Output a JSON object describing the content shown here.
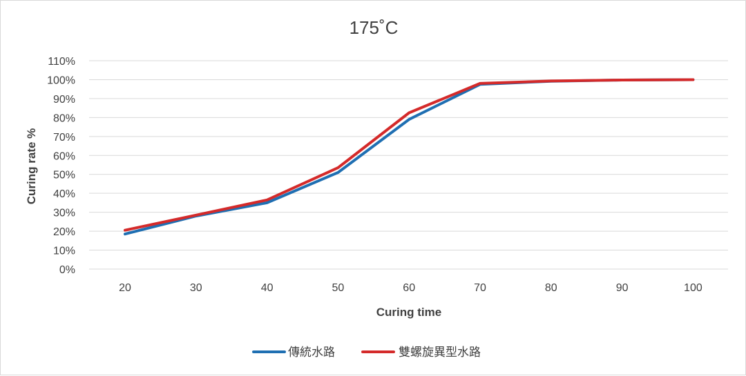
{
  "chart_data": {
    "type": "line",
    "title": "175˚C",
    "xlabel": "Curing time",
    "ylabel": "Curing rate %",
    "x": [
      20,
      30,
      40,
      50,
      60,
      70,
      80,
      90,
      100
    ],
    "x_tick_labels": [
      "20",
      "30",
      "40",
      "50",
      "60",
      "70",
      "80",
      "90",
      "100"
    ],
    "ylim": [
      0,
      110
    ],
    "y_ticks": [
      0,
      10,
      20,
      30,
      40,
      50,
      60,
      70,
      80,
      90,
      100,
      110
    ],
    "y_tick_labels": [
      "0%",
      "10%",
      "20%",
      "30%",
      "40%",
      "50%",
      "60%",
      "70%",
      "80%",
      "90%",
      "100%",
      "110%"
    ],
    "grid": true,
    "legend_position": "bottom",
    "series": [
      {
        "name": "傳統水路",
        "color": "#1f6fb2",
        "values": [
          18.5,
          28,
          35,
          51,
          79,
          97.5,
          99.2,
          99.8,
          100
        ]
      },
      {
        "name": "雙螺旋異型水路",
        "color": "#d42a2a",
        "values": [
          20.5,
          28.5,
          36.5,
          53.5,
          82.5,
          98,
          99.3,
          99.8,
          100
        ]
      }
    ]
  }
}
